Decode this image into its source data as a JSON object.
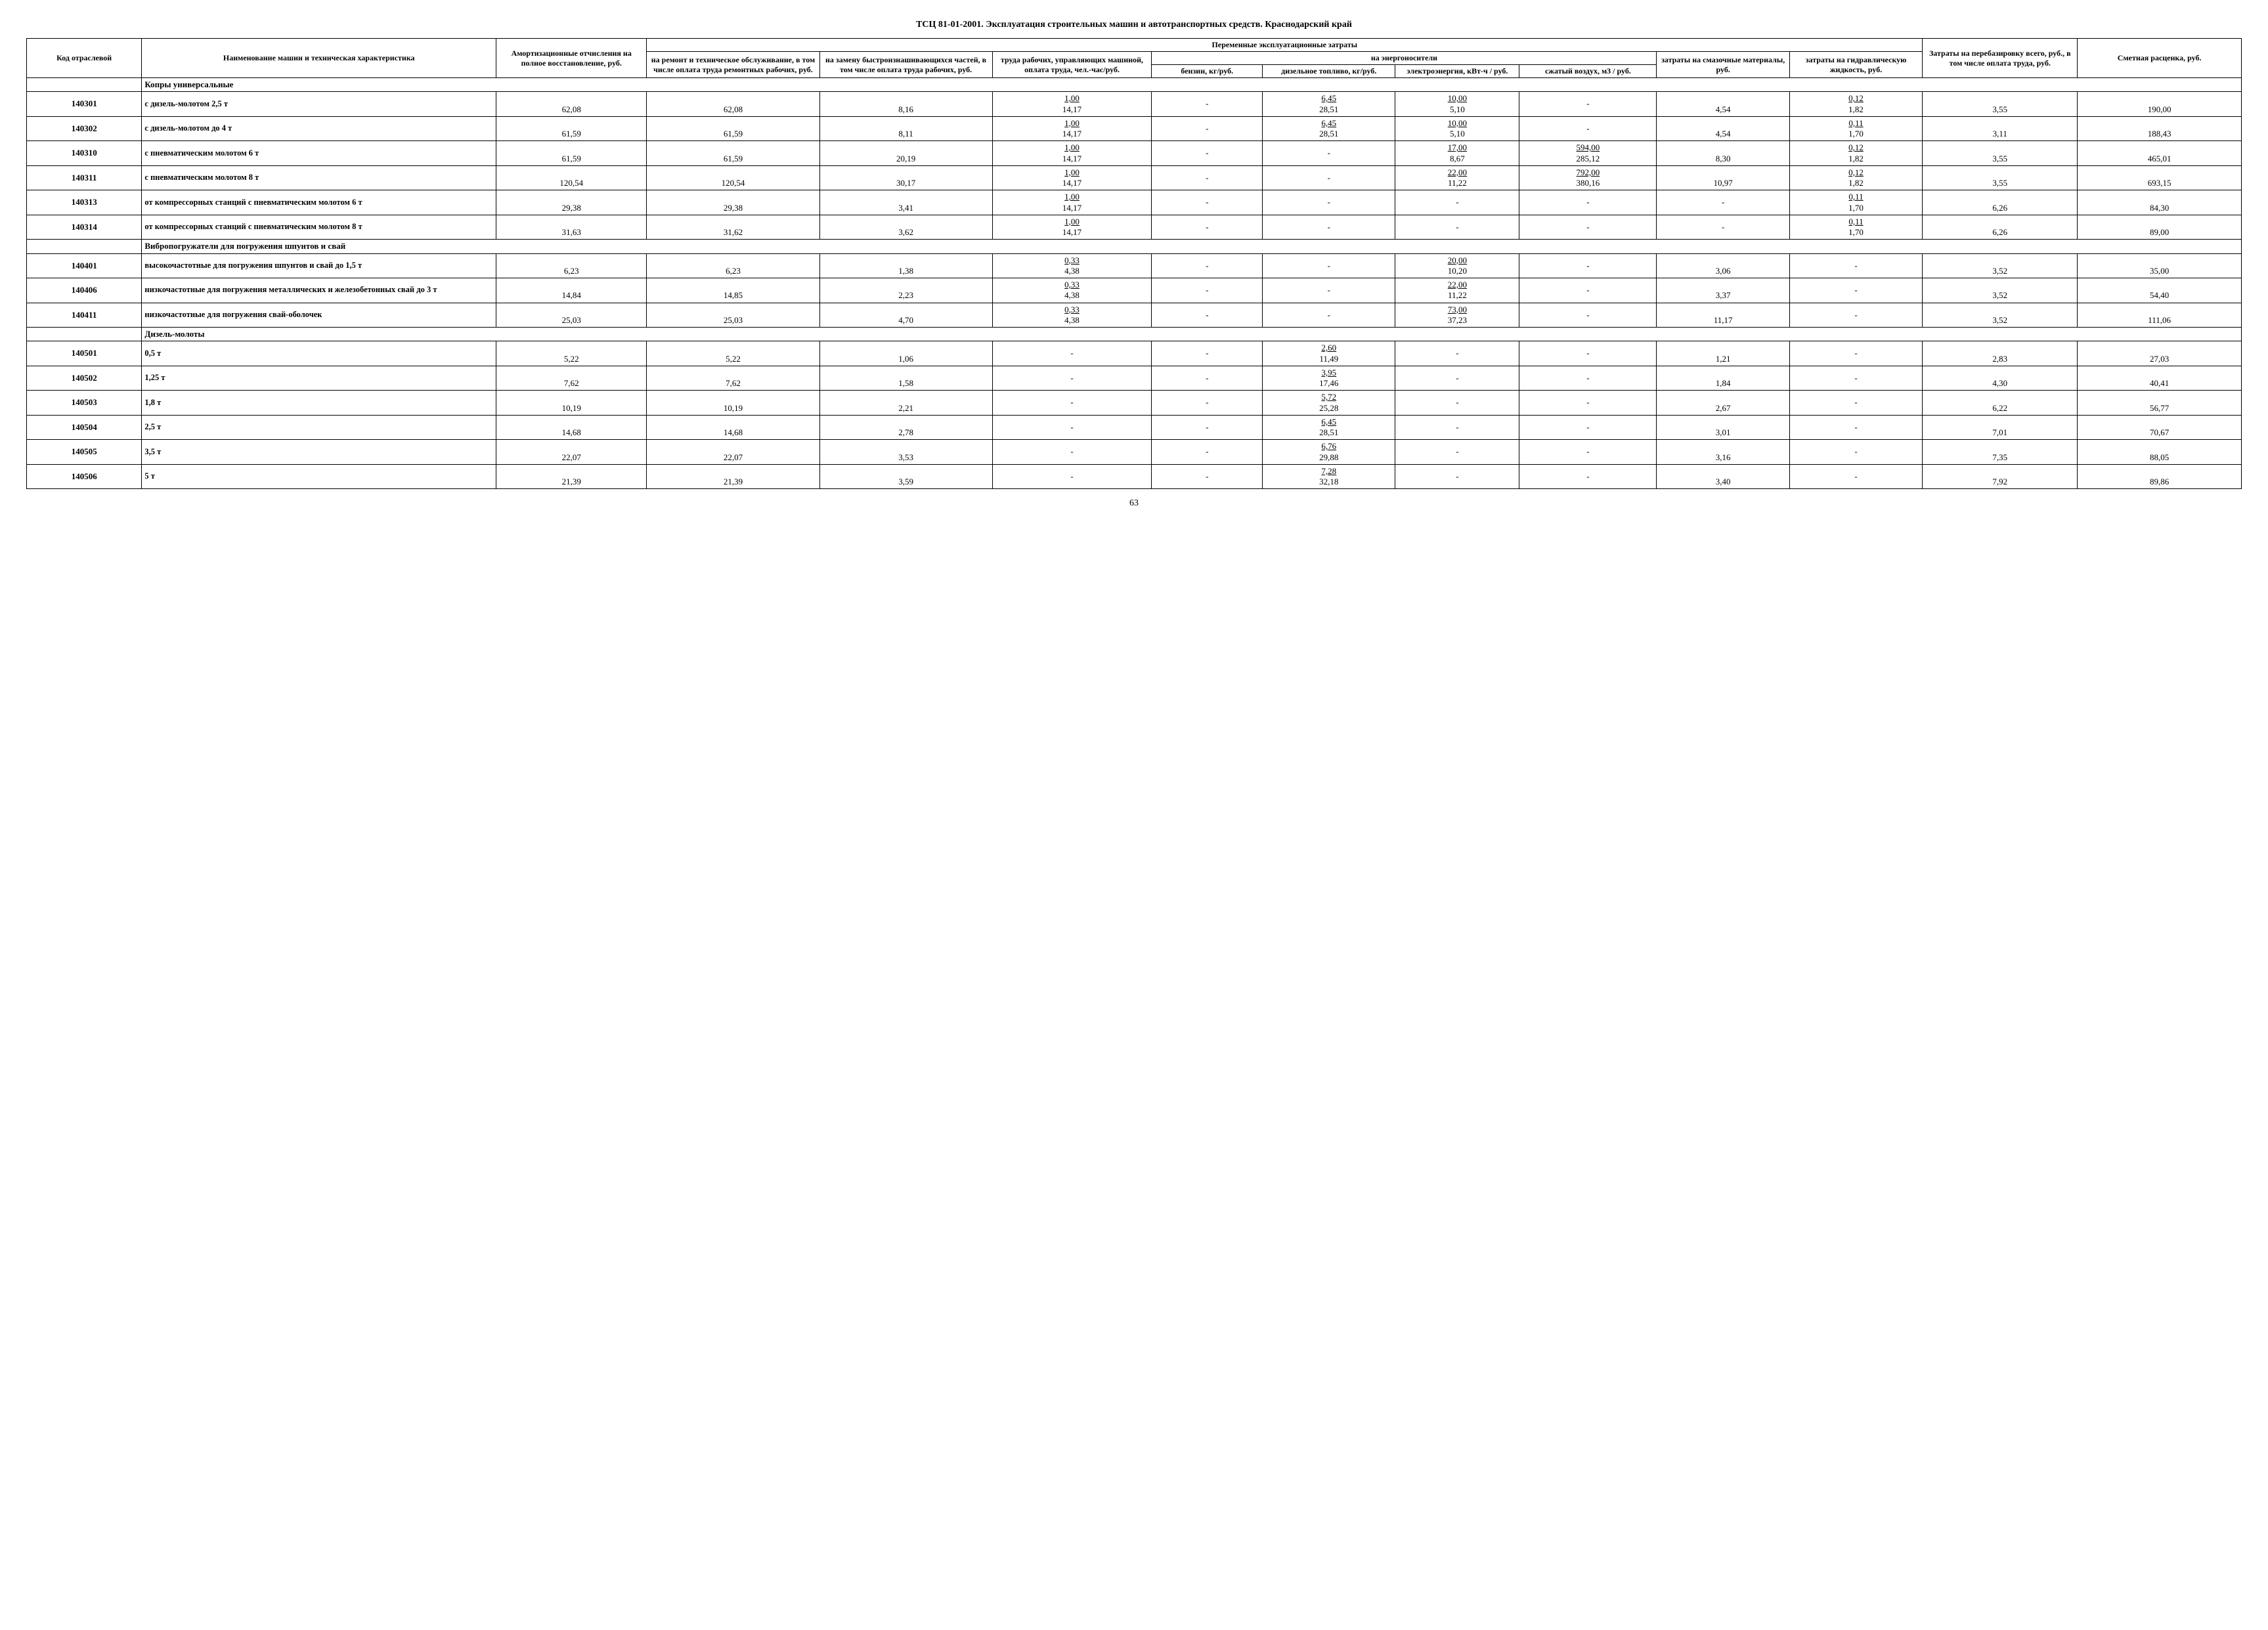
{
  "doc_title": "ТСЦ 81-01-2001. Эксплуатация строительных машин и автотранспортных средств. Краснодарский край",
  "page_number": "63",
  "header": {
    "code": "Код отраслевой",
    "name": "Наименование машин и техническая характеристика",
    "amort": "Амортизационные отчисления на полное восстановление, руб.",
    "perem_group": "Переменные эксплуатационные затраты",
    "remont": "на ремонт и техническое обслуживание, в том числе оплата труда ремонтных рабочих, руб.",
    "zamena": "на замену быстроизнашивающихся частей, в том числе оплата труда рабочих, руб.",
    "trud": "труда рабочих, управляющих машиной, оплата труда, чел.-час/руб.",
    "energo_group": "на энергоносители",
    "benzin": "бензин, кг/руб.",
    "dizel": "дизельное топливо, кг/руб.",
    "elektro": "электроэнергия, кВт-ч / руб.",
    "vozduh": "сжатый воздух, м3 / руб.",
    "smaz": "затраты на смазочные материалы, руб.",
    "gidr": "затраты на гидравлическую жидкость, руб.",
    "pereb": "Затраты на перебазировку всего, руб., в том числе оплата труда, руб.",
    "smeta": "Сметная расценка, руб."
  },
  "sections": [
    {
      "title": "Копры универсальные",
      "rows": [
        {
          "code": "140301",
          "name": "с дизель-молотом 2,5 т",
          "amort": "62,08",
          "rem": "62,08",
          "zam": "8,16",
          "trud_t": "1,00",
          "trud_b": "14,17",
          "benz": "-",
          "diz_t": "6,45",
          "diz_b": "28,51",
          "el_t": "10,00",
          "el_b": "5,10",
          "vozd": "-",
          "smaz": "4,54",
          "gidr_t": "0,12",
          "gidr_b": "1,82",
          "pereb": "3,55",
          "smeta": "190,00"
        },
        {
          "code": "140302",
          "name": "с дизель-молотом до 4 т",
          "amort": "61,59",
          "rem": "61,59",
          "zam": "8,11",
          "trud_t": "1,00",
          "trud_b": "14,17",
          "benz": "-",
          "diz_t": "6,45",
          "diz_b": "28,51",
          "el_t": "10,00",
          "el_b": "5,10",
          "vozd": "-",
          "smaz": "4,54",
          "gidr_t": "0,11",
          "gidr_b": "1,70",
          "pereb": "3,11",
          "smeta": "188,43"
        },
        {
          "code": "140310",
          "name": "с пневматическим молотом 6 т",
          "amort": "61,59",
          "rem": "61,59",
          "zam": "20,19",
          "trud_t": "1,00",
          "trud_b": "14,17",
          "benz": "-",
          "diz": "-",
          "el_t": "17,00",
          "el_b": "8,67",
          "vozd_t": "594,00",
          "vozd_b": "285,12",
          "smaz": "8,30",
          "gidr_t": "0,12",
          "gidr_b": "1,82",
          "pereb": "3,55",
          "smeta": "465,01"
        },
        {
          "code": "140311",
          "name": "с пневматическим молотом 8 т",
          "amort": "120,54",
          "rem": "120,54",
          "zam": "30,17",
          "trud_t": "1,00",
          "trud_b": "14,17",
          "benz": "-",
          "diz": "-",
          "el_t": "22,00",
          "el_b": "11,22",
          "vozd_t": "792,00",
          "vozd_b": "380,16",
          "smaz": "10,97",
          "gidr_t": "0,12",
          "gidr_b": "1,82",
          "pereb": "3,55",
          "smeta": "693,15"
        },
        {
          "code": "140313",
          "name": "от компрессорных станций с пневматическим молотом 6 т",
          "amort": "29,38",
          "rem": "29,38",
          "zam": "3,41",
          "trud_t": "1,00",
          "trud_b": "14,17",
          "benz": "-",
          "diz": "-",
          "el": "-",
          "vozd": "-",
          "smaz": "-",
          "gidr_t": "0,11",
          "gidr_b": "1,70",
          "pereb": "6,26",
          "smeta": "84,30"
        },
        {
          "code": "140314",
          "name": "от компрессорных станций с пневматическим молотом 8 т",
          "amort": "31,63",
          "rem": "31,62",
          "zam": "3,62",
          "trud_t": "1,00",
          "trud_b": "14,17",
          "benz": "-",
          "diz": "-",
          "el": "-",
          "vozd": "-",
          "smaz": "-",
          "gidr_t": "0,11",
          "gidr_b": "1,70",
          "pereb": "6,26",
          "smeta": "89,00"
        }
      ]
    },
    {
      "title": "Вибропогружатели для погружения шпунтов и свай",
      "rows": [
        {
          "code": "140401",
          "name": "высокочастотные для погружения шпунтов и свай до 1,5 т",
          "amort": "6,23",
          "rem": "6,23",
          "zam": "1,38",
          "trud_t": "0,33",
          "trud_b": "4,38",
          "benz": "-",
          "diz": "-",
          "el_t": "20,00",
          "el_b": "10,20",
          "vozd": "-",
          "smaz": "3,06",
          "gidr": "-",
          "pereb": "3,52",
          "smeta": "35,00"
        },
        {
          "code": "140406",
          "name": "низкочастотные для погружения металлических и железобетонных свай до 3 т",
          "amort": "14,84",
          "rem": "14,85",
          "zam": "2,23",
          "trud_t": "0,33",
          "trud_b": "4,38",
          "benz": "-",
          "diz": "-",
          "el_t": "22,00",
          "el_b": "11,22",
          "vozd": "-",
          "smaz": "3,37",
          "gidr": "-",
          "pereb": "3,52",
          "smeta": "54,40"
        },
        {
          "code": "140411",
          "name": "низкочастотные для погружения свай-оболочек",
          "amort": "25,03",
          "rem": "25,03",
          "zam": "4,70",
          "trud_t": "0,33",
          "trud_b": "4,38",
          "benz": "-",
          "diz": "-",
          "el_t": "73,00",
          "el_b": "37,23",
          "vozd": "-",
          "smaz": "11,17",
          "gidr": "-",
          "pereb": "3,52",
          "smeta": "111,06"
        }
      ]
    },
    {
      "title": "Дизель-молоты",
      "rows": [
        {
          "code": "140501",
          "name": "0,5 т",
          "amort": "5,22",
          "rem": "5,22",
          "zam": "1,06",
          "trud": "-",
          "benz": "-",
          "diz_t": "2,60",
          "diz_b": "11,49",
          "el": "-",
          "vozd": "-",
          "smaz": "1,21",
          "gidr": "-",
          "pereb": "2,83",
          "smeta": "27,03"
        },
        {
          "code": "140502",
          "name": "1,25 т",
          "amort": "7,62",
          "rem": "7,62",
          "zam": "1,58",
          "trud": "-",
          "benz": "-",
          "diz_t": "3,95",
          "diz_b": "17,46",
          "el": "-",
          "vozd": "-",
          "smaz": "1,84",
          "gidr": "-",
          "pereb": "4,30",
          "smeta": "40,41"
        },
        {
          "code": "140503",
          "name": "1,8 т",
          "amort": "10,19",
          "rem": "10,19",
          "zam": "2,21",
          "trud": "-",
          "benz": "-",
          "diz_t": "5,72",
          "diz_b": "25,28",
          "el": "-",
          "vozd": "-",
          "smaz": "2,67",
          "gidr": "-",
          "pereb": "6,22",
          "smeta": "56,77"
        },
        {
          "code": "140504",
          "name": "2,5 т",
          "amort": "14,68",
          "rem": "14,68",
          "zam": "2,78",
          "trud": "-",
          "benz": "-",
          "diz_t": "6,45",
          "diz_b": "28,51",
          "el": "-",
          "vozd": "-",
          "smaz": "3,01",
          "gidr": "-",
          "pereb": "7,01",
          "smeta": "70,67"
        },
        {
          "code": "140505",
          "name": "3,5 т",
          "amort": "22,07",
          "rem": "22,07",
          "zam": "3,53",
          "trud": "-",
          "benz": "-",
          "diz_t": "6,76",
          "diz_b": "29,88",
          "el": "-",
          "vozd": "-",
          "smaz": "3,16",
          "gidr": "-",
          "pereb": "7,35",
          "smeta": "88,05"
        },
        {
          "code": "140506",
          "name": "5 т",
          "amort": "21,39",
          "rem": "21,39",
          "zam": "3,59",
          "trud": "-",
          "benz": "-",
          "diz_t": "7,28",
          "diz_b": "32,18",
          "el": "-",
          "vozd": "-",
          "smaz": "3,40",
          "gidr": "-",
          "pereb": "7,92",
          "smeta": "89,86"
        }
      ]
    }
  ]
}
